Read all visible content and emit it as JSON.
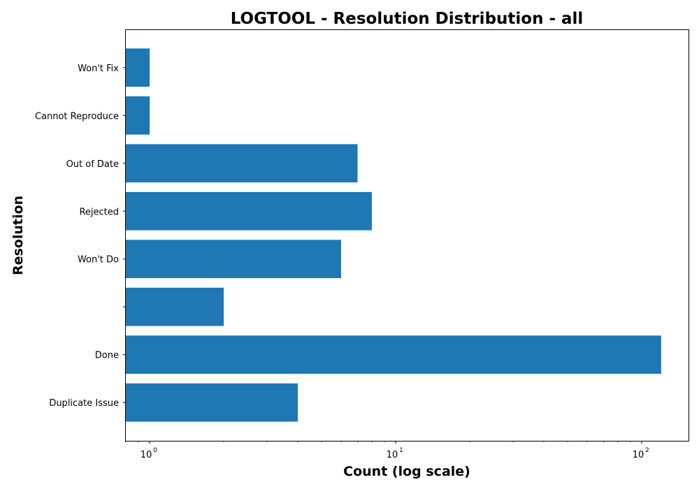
{
  "chart_data": {
    "type": "bar",
    "orientation": "horizontal",
    "title": "LOGTOOL - Resolution Distribution - all",
    "xlabel": "Count (log scale)",
    "ylabel": "Resolution",
    "x_scale": "log",
    "xlim": [
      0.8,
      155
    ],
    "x_major_ticks": [
      {
        "value": 1,
        "base": "10",
        "exp": "0"
      },
      {
        "value": 10,
        "base": "10",
        "exp": "1"
      },
      {
        "value": 100,
        "base": "10",
        "exp": "2"
      }
    ],
    "categories": [
      "Duplicate Issue",
      "Done",
      "",
      "Won't Do",
      "Rejected",
      "Out of Date",
      "Cannot Reproduce",
      "Won't Fix"
    ],
    "values": [
      4,
      120,
      2,
      6,
      8,
      7,
      1,
      1
    ],
    "bar_color": "#1f77b4",
    "grid": false,
    "legend": false
  }
}
